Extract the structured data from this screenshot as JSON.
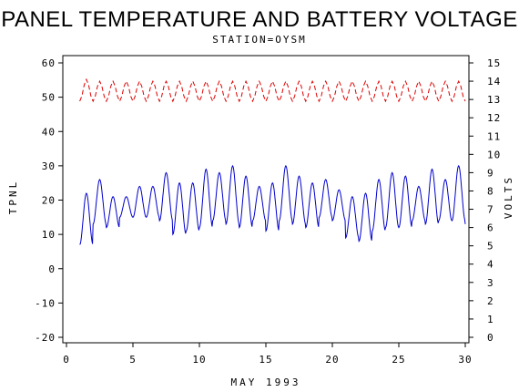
{
  "chart_data": {
    "type": "line",
    "title": "PANEL TEMPERATURE AND BATTERY VOLTAGE",
    "subtitle": "STATION=OYSM",
    "xlabel": "MAY 1993",
    "ylabel_left": "TPNL",
    "ylabel_right": "VOLTS",
    "xlim": [
      0,
      30
    ],
    "ylim_left": [
      -20,
      60
    ],
    "ylim_right": [
      0,
      15
    ],
    "x_ticks": [
      "0",
      "5",
      "10",
      "15",
      "20",
      "25",
      "30"
    ],
    "y_ticks_left": [
      "-20",
      "-10",
      "0",
      "10",
      "20",
      "30",
      "40",
      "50",
      "60"
    ],
    "y_ticks_right": [
      "0",
      "1",
      "2",
      "3",
      "4",
      "5",
      "6",
      "7",
      "8",
      "9",
      "10",
      "11",
      "12",
      "13",
      "14",
      "15"
    ],
    "grid": false,
    "series": [
      {
        "axis": "left",
        "color": "#0000cc",
        "style": "solid",
        "daily_min": [
          7,
          13,
          12,
          15,
          15,
          15,
          14,
          10,
          11,
          12,
          14,
          13,
          12,
          14,
          11,
          14,
          13,
          12,
          15,
          14,
          9,
          8,
          11,
          12,
          12,
          14,
          13,
          14,
          14,
          13
        ],
        "daily_max": [
          22,
          26,
          21,
          21,
          24,
          24,
          28,
          25,
          25,
          29,
          28,
          30,
          27,
          24,
          25,
          30,
          27,
          25,
          26,
          23,
          21,
          22,
          26,
          28,
          27,
          24,
          29,
          26,
          30,
          30
        ],
        "x_start": 1,
        "x_end": 30
      },
      {
        "axis": "right",
        "color": "#dd0000",
        "style": "dashed",
        "daily_min": [
          12.9,
          12.9,
          12.9,
          12.9,
          12.9,
          12.9,
          12.9,
          12.9,
          12.9,
          12.9,
          12.9,
          12.9,
          12.9,
          12.9,
          12.9,
          12.9,
          12.9,
          12.9,
          12.9,
          12.9,
          12.9,
          12.9,
          12.9,
          12.9,
          12.9,
          12.9,
          12.9,
          12.9,
          12.9,
          12.9
        ],
        "daily_max": [
          14.1,
          14.0,
          14.0,
          14.0,
          14.0,
          14.0,
          14.0,
          14.0,
          14.0,
          14.0,
          14.0,
          14.0,
          14.0,
          14.0,
          14.0,
          14.0,
          14.0,
          14.0,
          14.0,
          14.0,
          14.0,
          14.0,
          14.0,
          14.0,
          14.0,
          14.0,
          14.0,
          14.0,
          14.0,
          14.0
        ],
        "x_start": 1,
        "x_end": 30
      }
    ]
  }
}
